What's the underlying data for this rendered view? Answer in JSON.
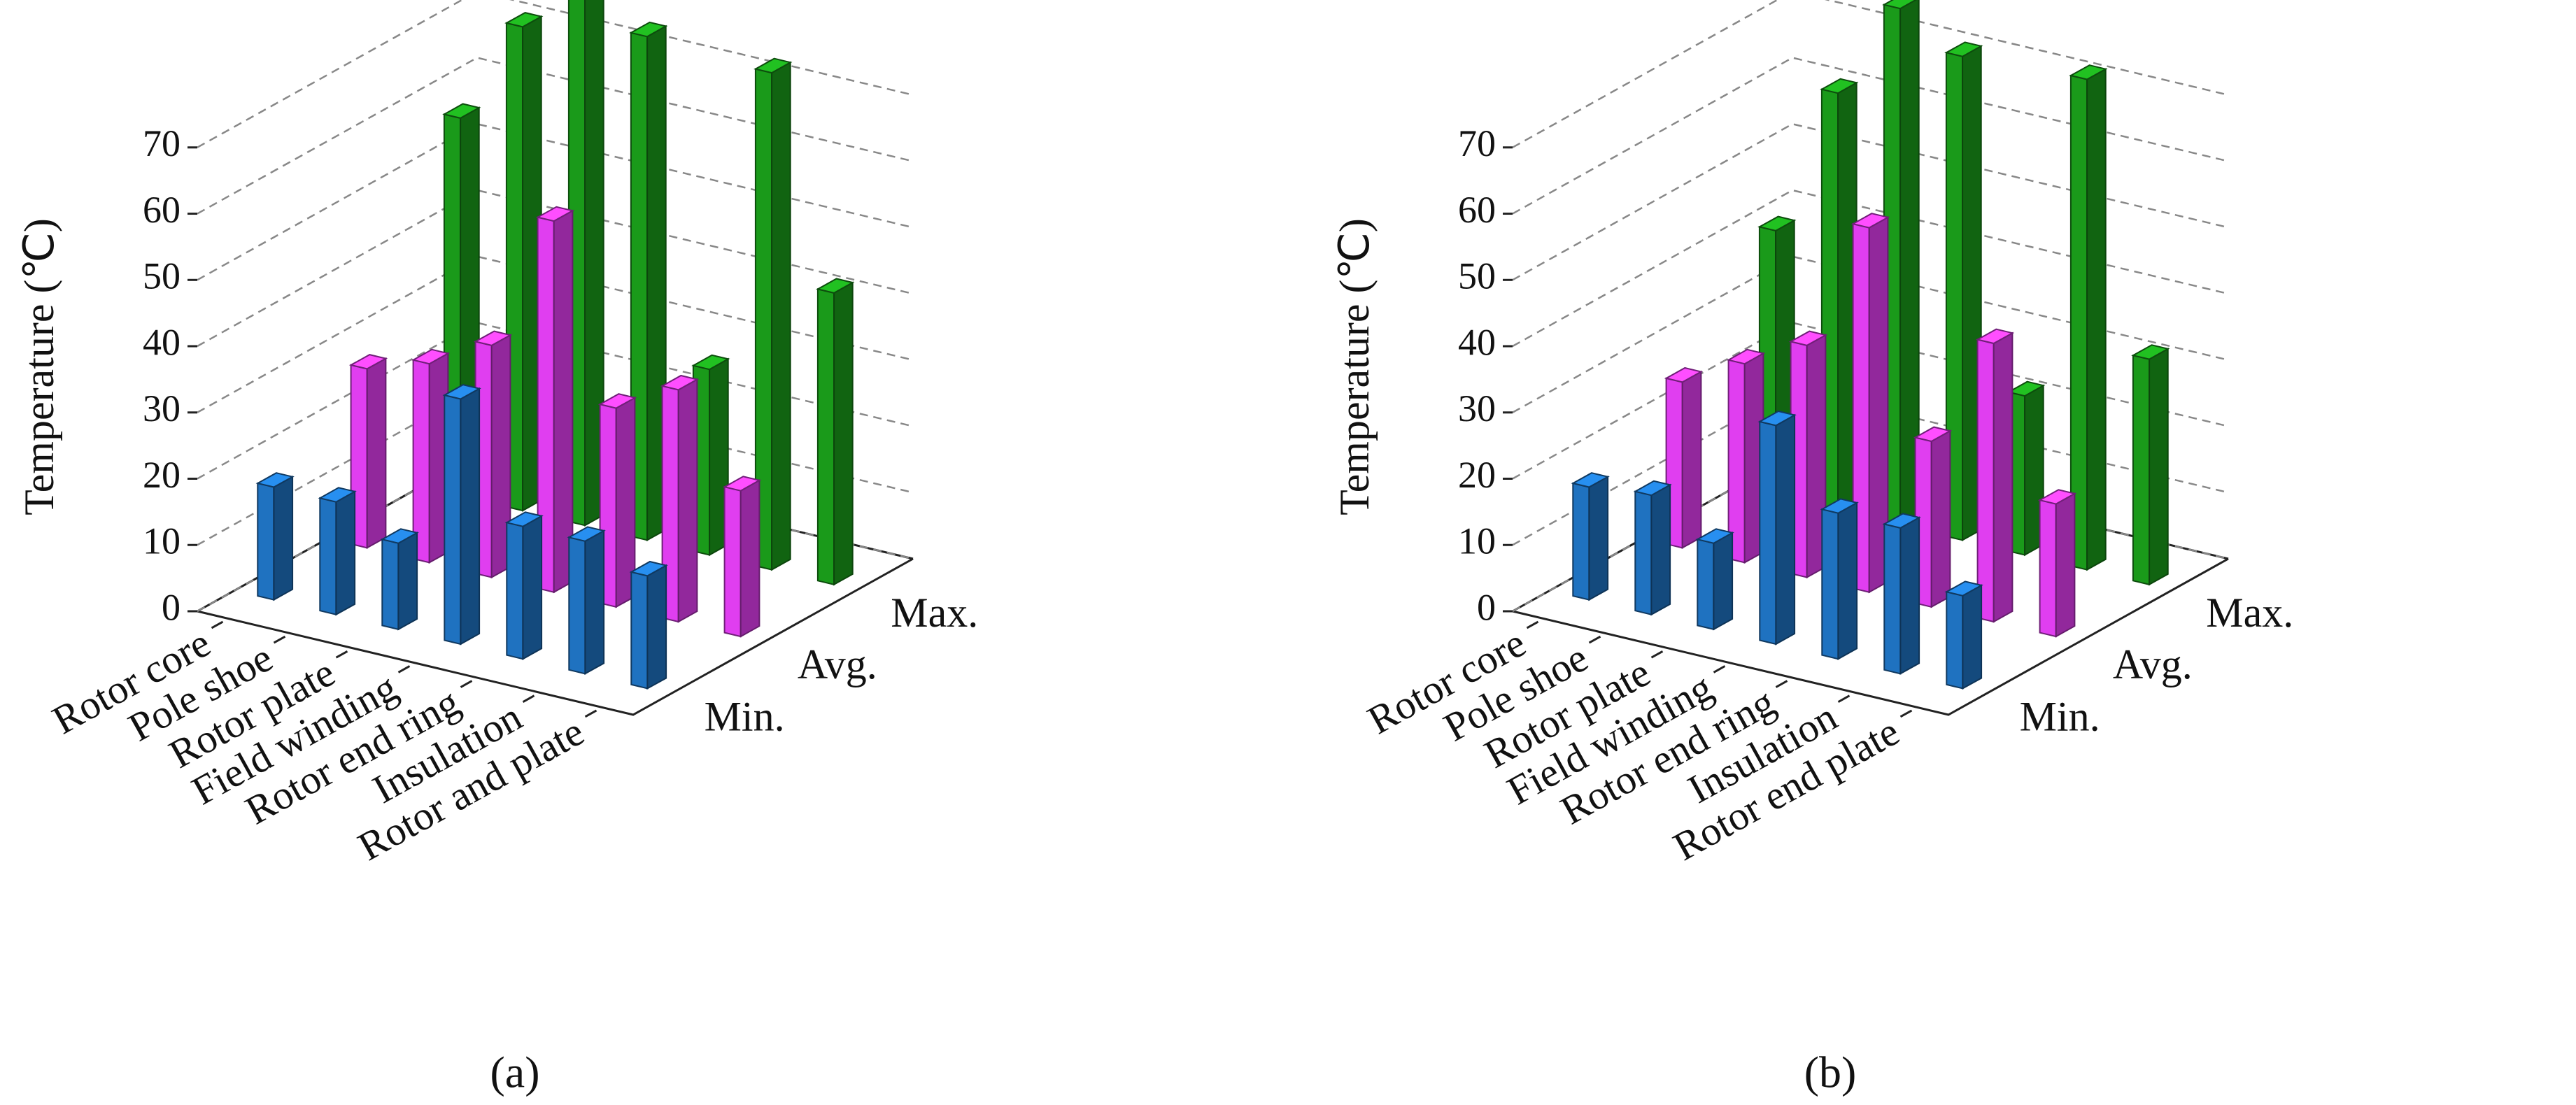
{
  "chart_data": [
    {
      "type": "bar3d",
      "caption": "(a)",
      "y_label": "Temperature (℃)",
      "categories": [
        "Rotor core",
        "Pole shoe",
        "Rotor plate",
        "Field winding",
        "Rotor end ring",
        "Insulation",
        "Rotor and plate"
      ],
      "series": [
        {
          "name": "Min.",
          "color": "#1f72c0",
          "values": [
            17,
            17,
            13,
            37,
            20,
            20,
            17
          ]
        },
        {
          "name": "Avg.",
          "color": "#e03ef0",
          "values": [
            27,
            30,
            35,
            56,
            30,
            35,
            22
          ]
        },
        {
          "name": "Max.",
          "color": "#1a9a1a",
          "values": [
            57,
            73,
            80,
            76,
            28,
            75,
            44
          ]
        }
      ],
      "ylim": [
        0,
        78
      ],
      "yticks": [
        0,
        10,
        20,
        30,
        40,
        50,
        60,
        70
      ],
      "grid": true
    },
    {
      "type": "bar3d",
      "caption": "(b)",
      "y_label": "Temperature (℃)",
      "categories": [
        "Rotor core",
        "Pole shoe",
        "Rotor plate",
        "Field winding",
        "Rotor end ring",
        "Insulation",
        "Rotor end plate"
      ],
      "series": [
        {
          "name": "Min.",
          "color": "#1f72c0",
          "values": [
            17,
            18,
            13,
            33,
            22,
            22,
            14
          ]
        },
        {
          "name": "Avg.",
          "color": "#e03ef0",
          "values": [
            25,
            30,
            35,
            55,
            25,
            42,
            20
          ]
        },
        {
          "name": "Max.",
          "color": "#1a9a1a",
          "values": [
            40,
            63,
            78,
            73,
            24,
            74,
            34
          ]
        }
      ],
      "ylim": [
        0,
        78
      ],
      "yticks": [
        0,
        10,
        20,
        30,
        40,
        50,
        60,
        70
      ],
      "grid": true
    }
  ]
}
